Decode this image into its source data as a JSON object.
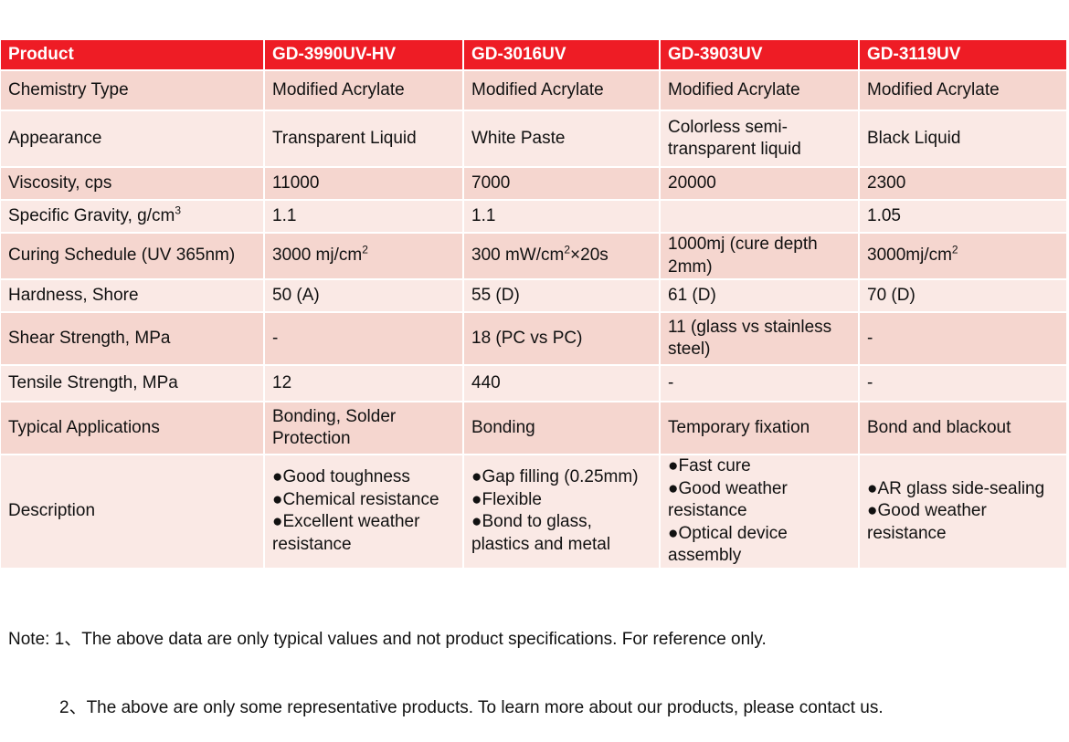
{
  "header": [
    "Product",
    "GD-3990UV-HV",
    "GD-3016UV",
    "GD-3903UV",
    "GD-3119UV"
  ],
  "rows": [
    {
      "label": "Chemistry Type",
      "values": [
        "Modified Acrylate",
        "Modified Acrylate",
        "Modified Acrylate",
        "Modified Acrylate"
      ]
    },
    {
      "label": "Appearance",
      "values": [
        "Transparent Liquid",
        "White Paste",
        "Colorless semi-transparent liquid",
        "Black Liquid"
      ]
    },
    {
      "label": "Viscosity, cps",
      "values": [
        "11000",
        "7000",
        "20000",
        "2300"
      ]
    },
    {
      "label": "Specific Gravity, g/cm³",
      "values": [
        "1.1",
        "1.1",
        "",
        "1.05"
      ]
    },
    {
      "label": "Curing Schedule (UV 365nm)",
      "values": [
        "3000 mj/cm²",
        "300 mW/cm²×20s",
        "1000mj (cure depth 2mm)",
        "3000mj/cm²"
      ]
    },
    {
      "label": "Hardness, Shore",
      "values": [
        "50 (A)",
        "55 (D)",
        "61 (D)",
        "70 (D)"
      ]
    },
    {
      "label": "Shear Strength, MPa",
      "values": [
        "-",
        "18 (PC vs PC)",
        "11 (glass vs stainless steel)",
        "-"
      ]
    },
    {
      "label": "Tensile Strength, MPa",
      "values": [
        "12",
        "440",
        "-",
        "-"
      ]
    },
    {
      "label": "Typical Applications",
      "values": [
        "Bonding, Solder Protection",
        "Bonding",
        "Temporary fixation",
        "Bond and blackout"
      ]
    }
  ],
  "description": {
    "label": "Description",
    "values": [
      [
        "●Good toughness",
        "●Chemical resistance",
        "●Excellent weather resistance"
      ],
      [
        "●Gap filling (0.25mm)",
        "●Flexible",
        "●Bond to glass, plastics and metal"
      ],
      [
        "●Fast cure",
        "●Good weather resistance",
        "●Optical device assembly"
      ],
      [
        "●AR glass side-sealing",
        "●Good weather resistance"
      ]
    ]
  },
  "notes": [
    "Note: 1、The above data are only typical values and not product specifications. For reference only.",
    "2、The above are only some representative products. To learn more about our products, please contact us."
  ],
  "colors": {
    "header_bg": "#ee1c25",
    "row_dark": "#f5d6cf",
    "row_light": "#fae9e5"
  }
}
